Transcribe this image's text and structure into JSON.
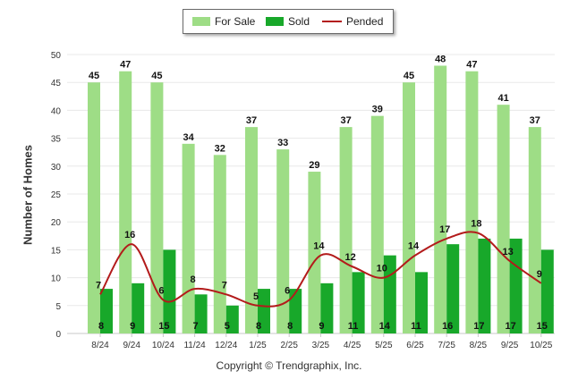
{
  "chart_data": {
    "type": "bar",
    "categories": [
      "8/24",
      "9/24",
      "10/24",
      "11/24",
      "12/24",
      "1/25",
      "2/25",
      "3/25",
      "4/25",
      "5/25",
      "6/25",
      "7/25",
      "8/25",
      "9/25",
      "10/25"
    ],
    "series": [
      {
        "name": "For Sale",
        "type": "bar",
        "color": "#9edd86",
        "values": [
          45,
          47,
          45,
          34,
          32,
          37,
          33,
          29,
          37,
          39,
          45,
          48,
          47,
          41,
          37
        ]
      },
      {
        "name": "Sold",
        "type": "bar",
        "color": "#18a82a",
        "values": [
          8,
          9,
          15,
          7,
          5,
          8,
          8,
          9,
          11,
          14,
          11,
          16,
          17,
          17,
          15
        ]
      },
      {
        "name": "Pended",
        "type": "line",
        "color": "#b31b1b",
        "values": [
          7,
          16,
          6,
          8,
          7,
          5,
          6,
          14,
          12,
          10,
          14,
          17,
          18,
          13,
          9
        ]
      }
    ],
    "ylabel": "Number of Homes",
    "xlabel": "",
    "ylim": [
      0,
      50
    ],
    "yticks": [
      0,
      5,
      10,
      15,
      20,
      25,
      30,
      35,
      40,
      45,
      50
    ],
    "grid": true,
    "legend_position": "top-center"
  },
  "footer": {
    "copyright": "Copyright © Trendgraphix, Inc."
  }
}
